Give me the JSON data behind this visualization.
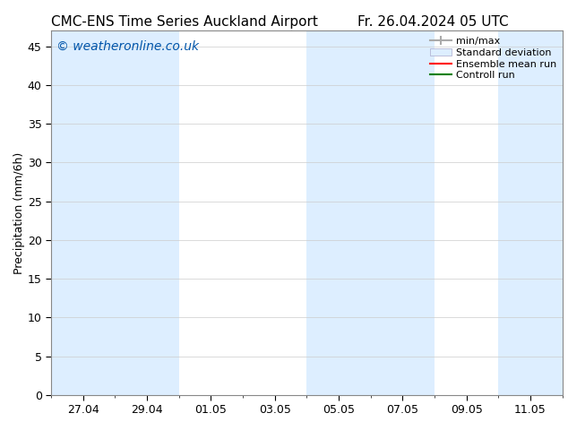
{
  "title_left": "CMC-ENS Time Series Auckland Airport",
  "title_right": "Fr. 26.04.2024 05 UTC",
  "ylabel": "Precipitation (mm/6h)",
  "watermark": "© weatheronline.co.uk",
  "watermark_color": "#0055aa",
  "ylim": [
    0,
    47
  ],
  "yticks": [
    0,
    5,
    10,
    15,
    20,
    25,
    30,
    35,
    40,
    45
  ],
  "bg_color": "#ffffff",
  "plot_bg_color": "#ffffff",
  "shaded_band_color": "#ddeeff",
  "xtick_labels": [
    "27.04",
    "29.04",
    "01.05",
    "03.05",
    "05.05",
    "07.05",
    "09.05",
    "11.05"
  ],
  "legend_labels": [
    "min/max",
    "Standard deviation",
    "Ensemble mean run",
    "Controll run"
  ],
  "font_size_title": 11,
  "font_size_ticks": 9,
  "font_size_ylabel": 9,
  "font_size_legend": 8,
  "font_size_watermark": 10
}
